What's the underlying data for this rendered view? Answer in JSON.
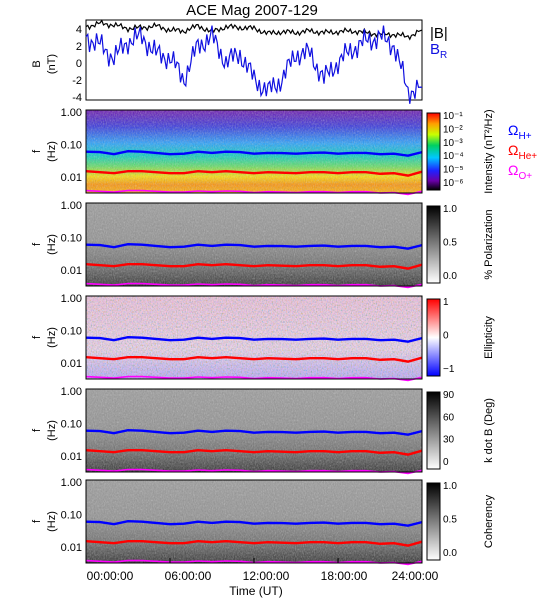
{
  "title": "ACE Mag 2007-129",
  "colors": {
    "b_total": "#000000",
    "b_radial": "#1010e0",
    "omega_h": "#0000ff",
    "omega_he": "#ff0000",
    "omega_o": "#ff00ff"
  },
  "x_axis": {
    "label": "Time (UT)",
    "ticks": [
      "00:00:00",
      "06:00:00",
      "12:00:00",
      "18:00:00",
      "24:00:00"
    ],
    "tick_hours": [
      0,
      6,
      12,
      18,
      24
    ],
    "range_hours": [
      0,
      24
    ]
  },
  "legend_top": {
    "b_total": "|B|",
    "b_radial_main": "B",
    "b_radial_sub": "R"
  },
  "legend_gyro": [
    {
      "main": "Ω",
      "sub": "H+",
      "color": "#0000ff"
    },
    {
      "main": "Ω",
      "sub": "He+",
      "color": "#ff0000"
    },
    {
      "main": "Ω",
      "sub": "O+",
      "color": "#ff00ff"
    }
  ],
  "panels": [
    {
      "id": "mag",
      "ylabel_main": "B",
      "ylabel_sub": "(nT)"
    },
    {
      "id": "intensity",
      "ylabel_main": "f",
      "ylabel_sub": "(Hz)",
      "colorbar_label": "Intensity (nT²/Hz)"
    },
    {
      "id": "polarization",
      "ylabel_main": "f",
      "ylabel_sub": "(Hz)",
      "colorbar_label": "% Polarization"
    },
    {
      "id": "ellipticity",
      "ylabel_main": "f",
      "ylabel_sub": "(Hz)",
      "colorbar_label": "Ellipticity"
    },
    {
      "id": "kdotb",
      "ylabel_main": "f",
      "ylabel_sub": "(Hz)",
      "colorbar_label": "k dot B (Deg)"
    },
    {
      "id": "coherency",
      "ylabel_main": "f",
      "ylabel_sub": "(Hz)",
      "colorbar_label": "Coherency"
    }
  ],
  "chart_data": [
    {
      "type": "line",
      "title": "ACE Mag 2007-129",
      "ylabel": "B (nT)",
      "xlabel": "Time (UT)",
      "ylim": [
        -4.5,
        5
      ],
      "yticks": [
        "4",
        "2",
        "0",
        "-2",
        "-4"
      ],
      "x": [
        0,
        1,
        2,
        3,
        4,
        5,
        6,
        7,
        8,
        9,
        10,
        11,
        12,
        13,
        14,
        15,
        16,
        17,
        18,
        19,
        20,
        21,
        22,
        23,
        24
      ],
      "series": [
        {
          "name": "|B|",
          "values": [
            4.2,
            4.6,
            4.4,
            4.0,
            4.1,
            4.3,
            3.8,
            3.7,
            4.3,
            3.6,
            4.2,
            4.1,
            4.0,
            3.4,
            3.6,
            3.5,
            3.7,
            3.5,
            3.6,
            3.7,
            3.5,
            3.3,
            3.3,
            3.0,
            3.8
          ]
        },
        {
          "name": "B_R",
          "values": [
            3.0,
            2.0,
            0.5,
            2.5,
            3.0,
            1.0,
            0.5,
            -2.0,
            2.0,
            3.0,
            0.0,
            1.0,
            -2.0,
            -3.5,
            -2.0,
            1.0,
            1.0,
            -2.0,
            0.0,
            1.5,
            2.5,
            3.0,
            2.0,
            -3.5,
            -3.0
          ]
        }
      ]
    },
    {
      "type": "heatmap",
      "title": "",
      "ylabel": "f (Hz)",
      "ytick_labels": [
        "1.00",
        "0.10",
        "0.01"
      ],
      "colorbar_label": "Intensity (nT²/Hz)",
      "colorbar_scale": "log",
      "colorbar_ticks": [
        "10⁻¹",
        "10⁻²",
        "10⁻³",
        "10⁻⁴",
        "10⁻⁵",
        "10⁻⁶"
      ]
    },
    {
      "type": "heatmap",
      "title": "",
      "ylabel": "f (Hz)",
      "ytick_labels": [
        "1.00",
        "0.10",
        "0.01"
      ],
      "colorbar_label": "% Polarization",
      "colorbar_ticks": [
        "1.0",
        "0.5",
        "0.0"
      ]
    },
    {
      "type": "heatmap",
      "title": "",
      "ylabel": "f (Hz)",
      "ytick_labels": [
        "1.00",
        "0.10",
        "0.01"
      ],
      "colorbar_label": "Ellipticity",
      "colorbar_ticks": [
        "1",
        "0",
        "−1"
      ]
    },
    {
      "type": "heatmap",
      "title": "",
      "ylabel": "f (Hz)",
      "ytick_labels": [
        "1.00",
        "0.10",
        "0.01"
      ],
      "colorbar_label": "k dot B (Deg)",
      "colorbar_ticks": [
        "90",
        "60",
        "30",
        "0"
      ]
    },
    {
      "type": "heatmap",
      "title": "",
      "ylabel": "f (Hz)",
      "ytick_labels": [
        "1.00",
        "0.10",
        "0.01"
      ],
      "colorbar_label": "Coherency",
      "colorbar_ticks": [
        "1.0",
        "0.5",
        "0.0"
      ]
    }
  ],
  "gyrofrequency_lines_hz": {
    "omega_h": [
      0.06,
      0.058,
      0.05,
      0.062,
      0.06,
      0.055,
      0.05,
      0.052,
      0.06,
      0.055,
      0.06,
      0.058,
      0.052,
      0.055,
      0.054,
      0.052,
      0.055,
      0.056,
      0.052,
      0.055,
      0.055,
      0.05,
      0.052,
      0.045,
      0.058
    ],
    "omega_he": [
      0.015,
      0.014,
      0.013,
      0.015,
      0.015,
      0.014,
      0.013,
      0.013,
      0.015,
      0.014,
      0.015,
      0.014,
      0.013,
      0.014,
      0.0135,
      0.013,
      0.014,
      0.014,
      0.013,
      0.014,
      0.014,
      0.0125,
      0.013,
      0.011,
      0.0145
    ],
    "omega_o": [
      0.0038,
      0.0036,
      0.0034,
      0.0038,
      0.0038,
      0.0036,
      0.0034,
      0.0034,
      0.0037,
      0.0035,
      0.0037,
      0.0036,
      0.0033,
      0.0035,
      0.0034,
      0.0033,
      0.0035,
      0.0035,
      0.0033,
      0.0035,
      0.0035,
      0.0032,
      0.0033,
      0.0029,
      0.0036
    ]
  }
}
